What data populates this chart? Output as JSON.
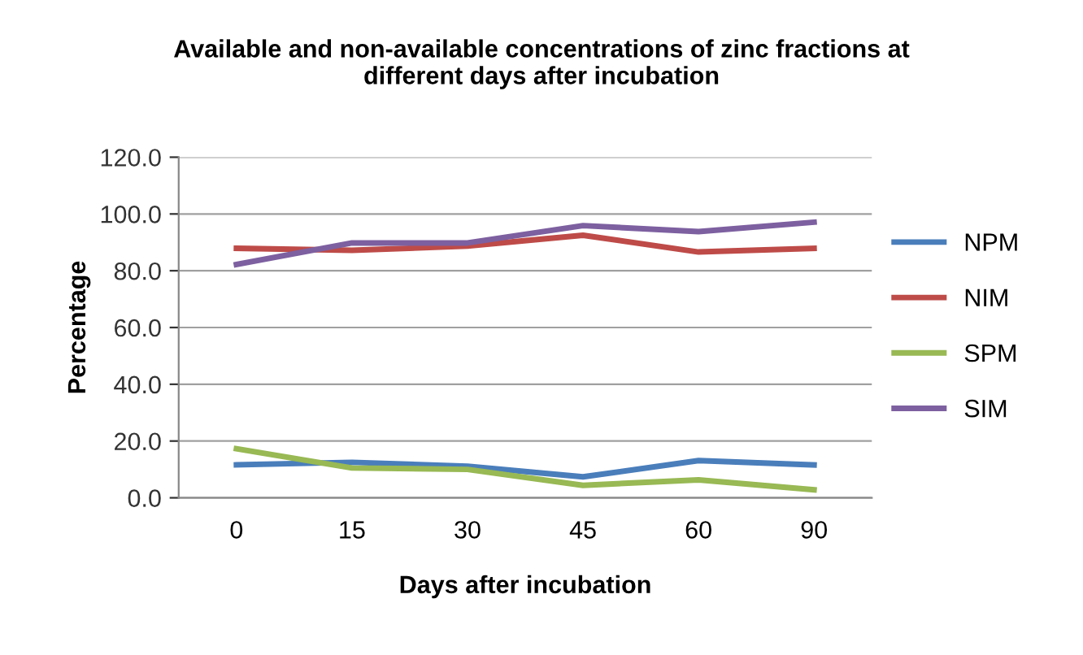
{
  "chart_data": {
    "type": "line",
    "title": "Available and non-available concentrations of zinc fractions at\ndifferent days after incubation",
    "xlabel": "Days after incubation",
    "ylabel": "Percentage",
    "categories": [
      "0",
      "15",
      "30",
      "45",
      "60",
      "90"
    ],
    "series": [
      {
        "name": "NPM",
        "color": "#4a7ebb",
        "values": [
          11.6,
          12.5,
          11.1,
          7.4,
          13.1,
          11.6
        ]
      },
      {
        "name": "NIM",
        "color": "#be4b48",
        "values": [
          87.9,
          87.2,
          88.7,
          92.5,
          86.6,
          87.9
        ]
      },
      {
        "name": "SPM",
        "color": "#98b954",
        "values": [
          17.3,
          10.5,
          10.0,
          4.4,
          6.3,
          2.8
        ]
      },
      {
        "name": "SIM",
        "color": "#7d60a0",
        "values": [
          82.2,
          89.8,
          89.8,
          95.9,
          93.8,
          97.1
        ]
      }
    ],
    "ylim": [
      0,
      120
    ],
    "yticks": [
      {
        "value": 0,
        "label": "0.0"
      },
      {
        "value": 20,
        "label": "20.0"
      },
      {
        "value": 40,
        "label": "40.0"
      },
      {
        "value": 60,
        "label": "60.0"
      },
      {
        "value": 80,
        "label": "80.0"
      },
      {
        "value": 100,
        "label": "100.0"
      },
      {
        "value": 120,
        "label": "120.0"
      }
    ],
    "grid": "y",
    "legend": "right",
    "marker": "none",
    "line_style": "solid"
  }
}
